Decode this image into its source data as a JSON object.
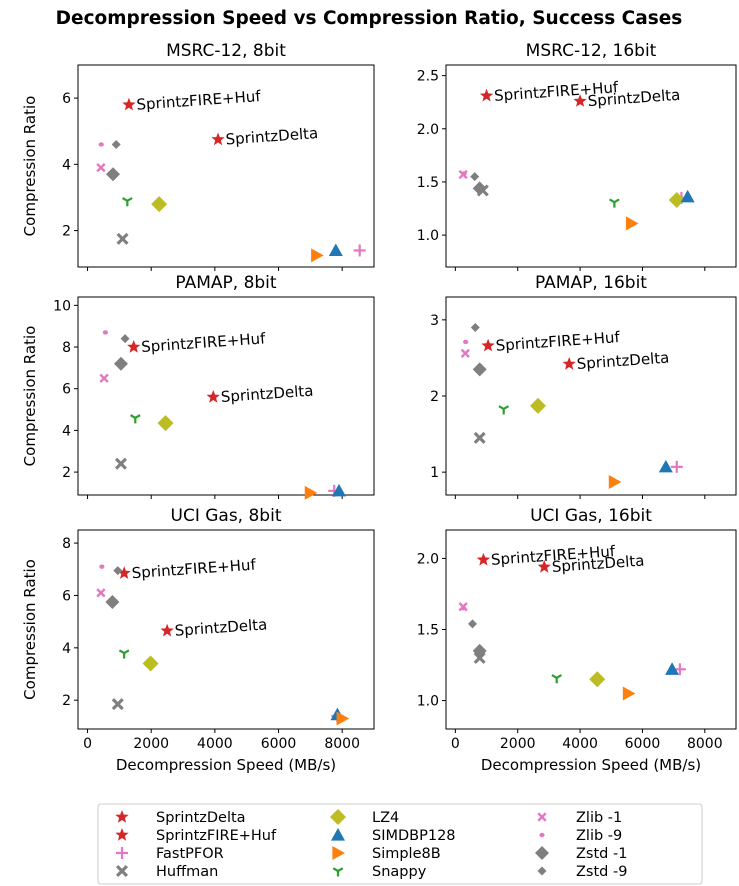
{
  "figure": {
    "title": "Decompression Speed vs Compression Ratio, Success Cases"
  },
  "legend": {
    "placement": "bottom-center",
    "entries": [
      {
        "name": "SprintzDelta",
        "marker": "star",
        "color": "#d62728"
      },
      {
        "name": "SprintzFIRE+Huf",
        "marker": "star",
        "color": "#d62728"
      },
      {
        "name": "FastPFOR",
        "marker": "plus",
        "color": "#e377c2"
      },
      {
        "name": "Huffman",
        "marker": "xfilled",
        "color": "#7f7f7f"
      },
      {
        "name": "LZ4",
        "marker": "diamond",
        "color": "#bcbd22"
      },
      {
        "name": "SIMDBP128",
        "marker": "triangle-up",
        "color": "#1f77b4"
      },
      {
        "name": "Simple8B",
        "marker": "triangle-right",
        "color": "#ff7f0e"
      },
      {
        "name": "Snappy",
        "marker": "tri-down",
        "color": "#2ca02c"
      },
      {
        "name": "Zlib -1",
        "marker": "xfilled-small",
        "color": "#e377c2"
      },
      {
        "name": "Zlib -9",
        "marker": "dot",
        "color": "#e377c2"
      },
      {
        "name": "Zstd -1",
        "marker": "diamond-gray",
        "color": "#7f7f7f"
      },
      {
        "name": "Zstd -9",
        "marker": "diamond-gray-small",
        "color": "#7f7f7f"
      }
    ]
  },
  "chart_data": [
    {
      "type": "scatter",
      "title": "MSRC-12, 8bit",
      "xlabel": "",
      "ylabel": "Compression Ratio",
      "xlim": [
        -300,
        9000
      ],
      "ylim": [
        0.9,
        7.0
      ],
      "xticks": [
        0,
        2000,
        4000,
        6000,
        8000
      ],
      "xticklabels": [
        "",
        "",
        "",
        "",
        ""
      ],
      "yticks": [
        2,
        4,
        6
      ],
      "yticklabels": [
        "2",
        "4",
        "6"
      ],
      "grid": false,
      "points": [
        {
          "series": "SprintzDelta",
          "x": 4100,
          "y": 4.75,
          "label": "SprintzDelta"
        },
        {
          "series": "SprintzFIRE+Huf",
          "x": 1300,
          "y": 5.8,
          "label": "SprintzFIRE+Huf"
        },
        {
          "series": "FastPFOR",
          "x": 8550,
          "y": 1.4
        },
        {
          "series": "Huffman",
          "x": 1100,
          "y": 1.75
        },
        {
          "series": "LZ4",
          "x": 2250,
          "y": 2.8
        },
        {
          "series": "SIMDBP128",
          "x": 7800,
          "y": 1.4
        },
        {
          "series": "Simple8B",
          "x": 7200,
          "y": 1.25
        },
        {
          "series": "Snappy",
          "x": 1250,
          "y": 2.9
        },
        {
          "series": "Zlib -1",
          "x": 420,
          "y": 3.9
        },
        {
          "series": "Zlib -9",
          "x": 430,
          "y": 4.6
        },
        {
          "series": "Zstd -1",
          "x": 800,
          "y": 3.7
        },
        {
          "series": "Zstd -9",
          "x": 900,
          "y": 4.6
        }
      ]
    },
    {
      "type": "scatter",
      "title": "MSRC-12, 16bit",
      "xlabel": "",
      "ylabel": "",
      "xlim": [
        -300,
        9000
      ],
      "ylim": [
        0.7,
        2.6
      ],
      "xticks": [
        0,
        2000,
        4000,
        6000,
        8000
      ],
      "xticklabels": [
        "",
        "",
        "",
        "",
        ""
      ],
      "yticks": [
        1.0,
        1.5,
        2.0,
        2.5
      ],
      "yticklabels": [
        "1.0",
        "1.5",
        "2.0",
        "2.5"
      ],
      "grid": false,
      "points": [
        {
          "series": "SprintzDelta",
          "x": 4000,
          "y": 2.26,
          "label": "SprintzDelta"
        },
        {
          "series": "SprintzFIRE+Huf",
          "x": 1000,
          "y": 2.31,
          "label": "SprintzFIRE+Huf"
        },
        {
          "series": "FastPFOR",
          "x": 7250,
          "y": 1.35
        },
        {
          "series": "Huffman",
          "x": 880,
          "y": 1.42
        },
        {
          "series": "LZ4",
          "x": 7100,
          "y": 1.33
        },
        {
          "series": "SIMDBP128",
          "x": 7450,
          "y": 1.36
        },
        {
          "series": "Simple8B",
          "x": 5650,
          "y": 1.11
        },
        {
          "series": "Snappy",
          "x": 5100,
          "y": 1.31
        },
        {
          "series": "Zlib -1",
          "x": 250,
          "y": 1.57
        },
        {
          "series": "Zlib -9",
          "x": 280,
          "y": 1.58
        },
        {
          "series": "Zstd -1",
          "x": 780,
          "y": 1.44
        },
        {
          "series": "Zstd -9",
          "x": 620,
          "y": 1.55
        }
      ]
    },
    {
      "type": "scatter",
      "title": "PAMAP, 8bit",
      "xlabel": "",
      "ylabel": "Compression Ratio",
      "xlim": [
        -300,
        9000
      ],
      "ylim": [
        0.9,
        10.4
      ],
      "xticks": [
        0,
        2000,
        4000,
        6000,
        8000
      ],
      "xticklabels": [
        "",
        "",
        "",
        "",
        ""
      ],
      "yticks": [
        2,
        4,
        6,
        8,
        10
      ],
      "yticklabels": [
        "2",
        "4",
        "6",
        "8",
        "10"
      ],
      "grid": false,
      "points": [
        {
          "series": "SprintzDelta",
          "x": 3950,
          "y": 5.6,
          "label": "SprintzDelta"
        },
        {
          "series": "SprintzFIRE+Huf",
          "x": 1450,
          "y": 8.0,
          "label": "SprintzFIRE+Huf"
        },
        {
          "series": "FastPFOR",
          "x": 7750,
          "y": 1.1
        },
        {
          "series": "Huffman",
          "x": 1050,
          "y": 2.4
        },
        {
          "series": "LZ4",
          "x": 2450,
          "y": 4.35
        },
        {
          "series": "SIMDBP128",
          "x": 7900,
          "y": 1.1
        },
        {
          "series": "Simple8B",
          "x": 7000,
          "y": 1.0
        },
        {
          "series": "Snappy",
          "x": 1500,
          "y": 4.6
        },
        {
          "series": "Zlib -1",
          "x": 520,
          "y": 6.5
        },
        {
          "series": "Zlib -9",
          "x": 560,
          "y": 8.7
        },
        {
          "series": "Zstd -1",
          "x": 1050,
          "y": 7.2
        },
        {
          "series": "Zstd -9",
          "x": 1180,
          "y": 8.4
        }
      ]
    },
    {
      "type": "scatter",
      "title": "PAMAP, 16bit",
      "xlabel": "",
      "ylabel": "",
      "xlim": [
        -300,
        9000
      ],
      "ylim": [
        0.7,
        3.3
      ],
      "xticks": [
        0,
        2000,
        4000,
        6000,
        8000
      ],
      "xticklabels": [
        "",
        "",
        "",
        "",
        ""
      ],
      "yticks": [
        1,
        2,
        3
      ],
      "yticklabels": [
        "1",
        "2",
        "3"
      ],
      "grid": false,
      "points": [
        {
          "series": "SprintzDelta",
          "x": 3650,
          "y": 2.42,
          "label": "SprintzDelta"
        },
        {
          "series": "SprintzFIRE+Huf",
          "x": 1050,
          "y": 2.66,
          "label": "SprintzFIRE+Huf"
        },
        {
          "series": "FastPFOR",
          "x": 7100,
          "y": 1.07
        },
        {
          "series": "Huffman",
          "x": 780,
          "y": 1.45
        },
        {
          "series": "LZ4",
          "x": 2650,
          "y": 1.87
        },
        {
          "series": "SIMDBP128",
          "x": 6750,
          "y": 1.07
        },
        {
          "series": "Simple8B",
          "x": 5100,
          "y": 0.87
        },
        {
          "series": "Snappy",
          "x": 1550,
          "y": 1.83
        },
        {
          "series": "Zlib -1",
          "x": 320,
          "y": 2.56
        },
        {
          "series": "Zlib -9",
          "x": 330,
          "y": 2.71
        },
        {
          "series": "Zstd -1",
          "x": 780,
          "y": 2.35
        },
        {
          "series": "Zstd -9",
          "x": 640,
          "y": 2.9
        }
      ]
    },
    {
      "type": "scatter",
      "title": "UCI Gas, 8bit",
      "xlabel": "Decompression Speed (MB/s)",
      "ylabel": "Compression Ratio",
      "xlim": [
        -300,
        9000
      ],
      "ylim": [
        0.9,
        8.5
      ],
      "xticks": [
        0,
        2000,
        4000,
        6000,
        8000
      ],
      "xticklabels": [
        "0",
        "2000",
        "4000",
        "6000",
        "8000"
      ],
      "yticks": [
        2,
        4,
        6,
        8
      ],
      "yticklabels": [
        "2",
        "4",
        "6",
        "8"
      ],
      "grid": false,
      "points": [
        {
          "series": "SprintzDelta",
          "x": 2500,
          "y": 4.65,
          "label": "SprintzDelta"
        },
        {
          "series": "SprintzFIRE+Huf",
          "x": 1150,
          "y": 6.85,
          "label": "SprintzFIRE+Huf"
        },
        {
          "series": "FastPFOR",
          "x": 7850,
          "y": 1.4
        },
        {
          "series": "Huffman",
          "x": 950,
          "y": 1.85
        },
        {
          "series": "LZ4",
          "x": 1980,
          "y": 3.4
        },
        {
          "series": "SIMDBP128",
          "x": 7850,
          "y": 1.45
        },
        {
          "series": "Simple8B",
          "x": 8000,
          "y": 1.3
        },
        {
          "series": "Snappy",
          "x": 1150,
          "y": 3.8
        },
        {
          "series": "Zlib -1",
          "x": 420,
          "y": 6.1
        },
        {
          "series": "Zlib -9",
          "x": 450,
          "y": 7.1
        },
        {
          "series": "Zstd -1",
          "x": 780,
          "y": 5.75
        },
        {
          "series": "Zstd -9",
          "x": 950,
          "y": 6.95
        }
      ]
    },
    {
      "type": "scatter",
      "title": "UCI Gas, 16bit",
      "xlabel": "Decompression Speed (MB/s)",
      "ylabel": "",
      "xlim": [
        -300,
        9000
      ],
      "ylim": [
        0.8,
        2.2
      ],
      "xticks": [
        0,
        2000,
        4000,
        6000,
        8000
      ],
      "xticklabels": [
        "0",
        "2000",
        "4000",
        "6000",
        "8000"
      ],
      "yticks": [
        1.0,
        1.5,
        2.0
      ],
      "yticklabels": [
        "1.0",
        "1.5",
        "2.0"
      ],
      "grid": false,
      "points": [
        {
          "series": "SprintzDelta",
          "x": 2850,
          "y": 1.94,
          "label": "SprintzDelta"
        },
        {
          "series": "SprintzFIRE+Huf",
          "x": 900,
          "y": 1.99,
          "label": "SprintzFIRE+Huf"
        },
        {
          "series": "FastPFOR",
          "x": 7200,
          "y": 1.22
        },
        {
          "series": "Huffman",
          "x": 780,
          "y": 1.3
        },
        {
          "series": "LZ4",
          "x": 4550,
          "y": 1.15
        },
        {
          "series": "SIMDBP128",
          "x": 6950,
          "y": 1.22
        },
        {
          "series": "Simple8B",
          "x": 5550,
          "y": 1.05
        },
        {
          "series": "Snappy",
          "x": 3250,
          "y": 1.16
        },
        {
          "series": "Zlib -1",
          "x": 250,
          "y": 1.66
        },
        {
          "series": "Zlib -9",
          "x": 260,
          "y": 1.65
        },
        {
          "series": "Zstd -1",
          "x": 780,
          "y": 1.35
        },
        {
          "series": "Zstd -9",
          "x": 550,
          "y": 1.54
        }
      ]
    }
  ]
}
